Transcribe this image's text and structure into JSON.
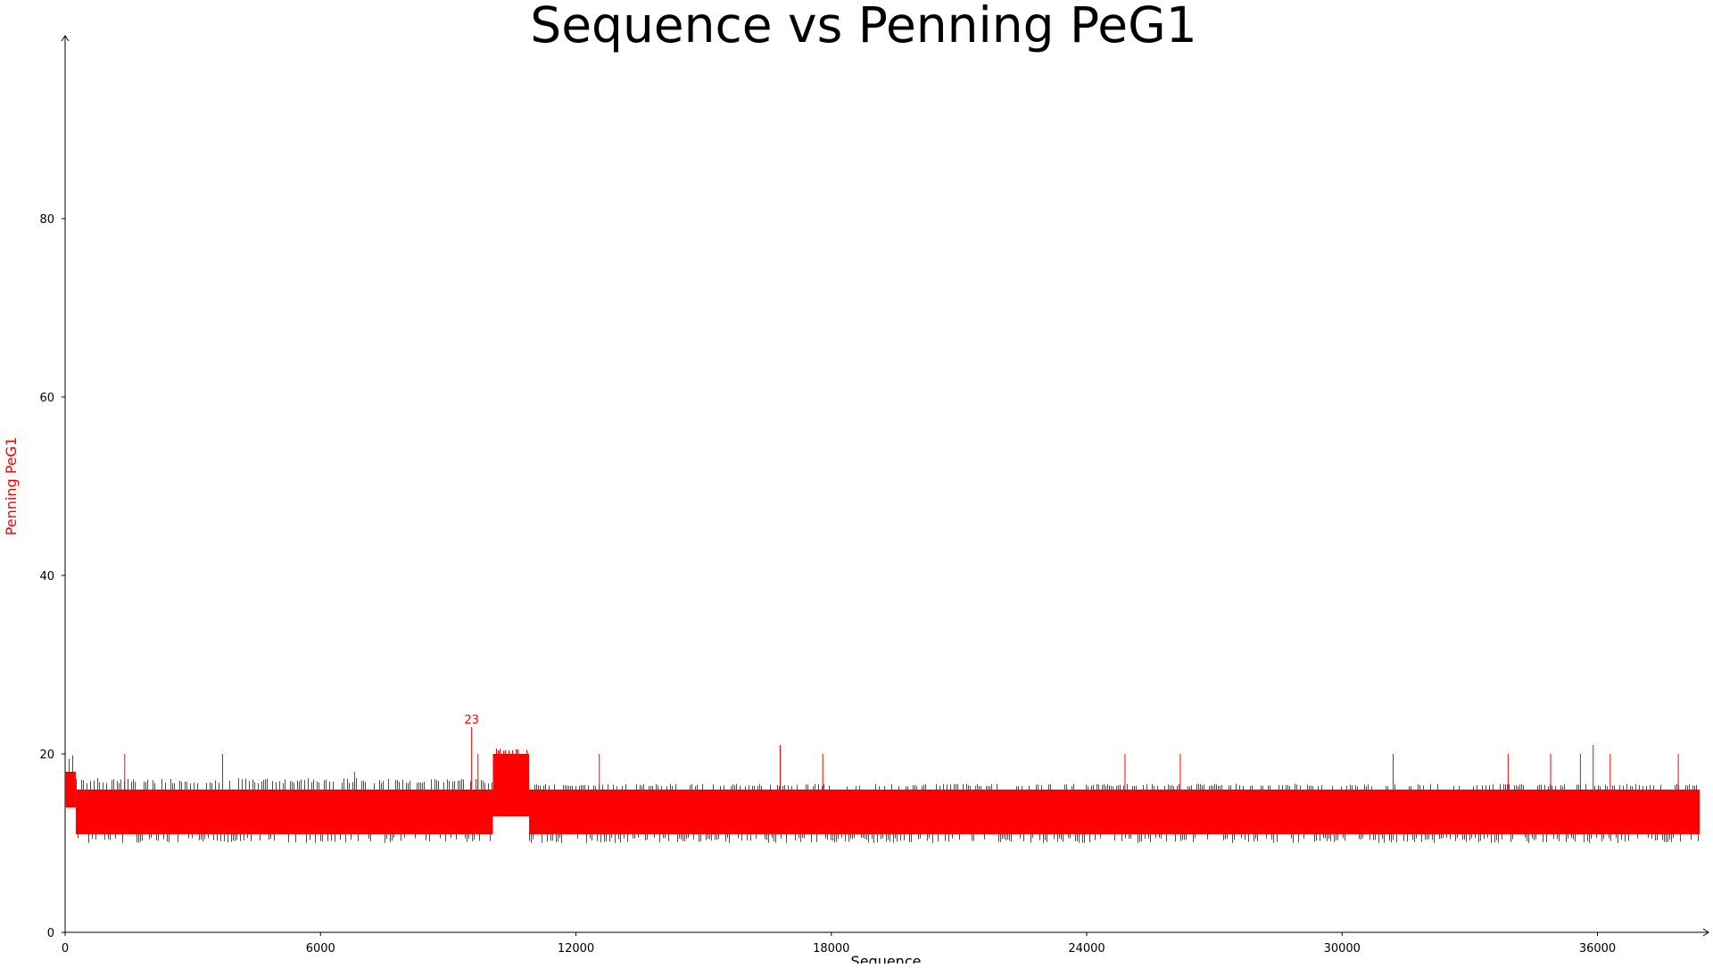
{
  "chart_data": {
    "type": "line",
    "title": "Sequence vs Penning PeG1",
    "xlabel": "Sequence",
    "ylabel": "Penning PeG1",
    "xlim": [
      0,
      38400
    ],
    "ylim": [
      0,
      100
    ],
    "x_ticks": [
      0,
      6000,
      12000,
      18000,
      24000,
      30000,
      36000
    ],
    "x_tick_labels": [
      "0",
      "6000",
      "12000",
      "18000",
      "24000",
      "30000",
      "36000"
    ],
    "y_ticks": [
      0,
      20,
      40,
      60,
      80
    ],
    "y_tick_labels": [
      "0",
      "20",
      "40",
      "60",
      "80"
    ],
    "grid": false,
    "legend": "none",
    "series": [
      {
        "color": "#ff0000",
        "segments": [
          {
            "x_start": 0,
            "x_end": 250,
            "band_low": 14,
            "band_high": 18,
            "min": 14,
            "max": 21
          },
          {
            "x_start": 250,
            "x_end": 10050,
            "band_low": 11,
            "band_high": 16,
            "min": 10,
            "max": 18
          },
          {
            "x_start": 10050,
            "x_end": 10900,
            "band_low": 13,
            "band_high": 20,
            "min": 13,
            "max": 21
          },
          {
            "x_start": 10900,
            "x_end": 38400,
            "band_low": 11,
            "band_high": 16,
            "min": 10,
            "max": 17
          }
        ],
        "spikes": [
          {
            "x": 1400,
            "y": 20
          },
          {
            "x": 3700,
            "y": 20
          },
          {
            "x": 6800,
            "y": 18
          },
          {
            "x": 9550,
            "y": 23
          },
          {
            "x": 9700,
            "y": 20
          },
          {
            "x": 12550,
            "y": 20
          },
          {
            "x": 16800,
            "y": 21
          },
          {
            "x": 17800,
            "y": 20
          },
          {
            "x": 24900,
            "y": 20
          },
          {
            "x": 26200,
            "y": 20
          },
          {
            "x": 31200,
            "y": 20
          },
          {
            "x": 33900,
            "y": 20
          },
          {
            "x": 34900,
            "y": 20
          },
          {
            "x": 35600,
            "y": 20
          },
          {
            "x": 35900,
            "y": 21
          },
          {
            "x": 36300,
            "y": 20
          },
          {
            "x": 37900,
            "y": 20
          }
        ]
      }
    ],
    "annotations": [
      {
        "x": 9550,
        "y": 23,
        "text": "23"
      }
    ]
  }
}
